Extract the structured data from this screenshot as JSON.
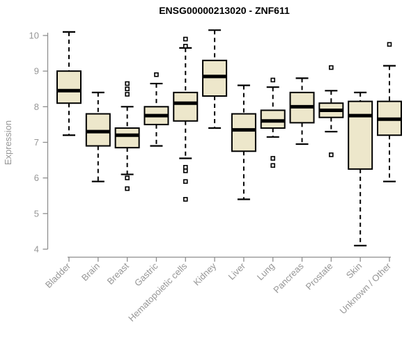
{
  "chart_data": {
    "type": "boxplot",
    "title": "ENSG00000213020 - ZNF611",
    "ylabel": "Expression",
    "xlabel": "",
    "ylim": [
      4,
      10
    ],
    "yticks": [
      4,
      5,
      6,
      7,
      8,
      9,
      10
    ],
    "grid": false,
    "legend": "none",
    "box_fill_color": "#ede7cb",
    "box_line_color": "#000000",
    "axis_color": "#8f8f8f",
    "label_color": "#969696",
    "title_color": "#000000",
    "categories": [
      "Bladder",
      "Brain",
      "Breast",
      "Gastric",
      "Hematopoietic cells",
      "Kidney",
      "Liver",
      "Lung",
      "Pancreas",
      "Prostate",
      "Skin",
      "Unknown / Other"
    ],
    "series": [
      {
        "category": "Bladder",
        "whisker_low": 7.2,
        "q1": 8.1,
        "median": 8.45,
        "q3": 9.0,
        "whisker_high": 10.1,
        "outliers": []
      },
      {
        "category": "Brain",
        "whisker_low": 5.9,
        "q1": 6.9,
        "median": 7.3,
        "q3": 7.8,
        "whisker_high": 8.4,
        "outliers": []
      },
      {
        "category": "Breast",
        "whisker_low": 6.1,
        "q1": 6.85,
        "median": 7.2,
        "q3": 7.4,
        "whisker_high": 8.0,
        "outliers": [
          8.65,
          8.5,
          8.35,
          6.0,
          5.7
        ]
      },
      {
        "category": "Gastric",
        "whisker_low": 6.9,
        "q1": 7.5,
        "median": 7.75,
        "q3": 8.0,
        "whisker_high": 8.65,
        "outliers": [
          8.9
        ]
      },
      {
        "category": "Hematopoietic cells",
        "whisker_low": 6.55,
        "q1": 7.6,
        "median": 8.1,
        "q3": 8.4,
        "whisker_high": 9.65,
        "outliers": [
          9.9,
          9.7,
          6.3,
          6.2,
          5.9,
          5.4
        ]
      },
      {
        "category": "Kidney",
        "whisker_low": 7.4,
        "q1": 8.3,
        "median": 8.85,
        "q3": 9.3,
        "whisker_high": 10.15,
        "outliers": []
      },
      {
        "category": "Liver",
        "whisker_low": 5.4,
        "q1": 6.75,
        "median": 7.35,
        "q3": 7.8,
        "whisker_high": 8.6,
        "outliers": []
      },
      {
        "category": "Lung",
        "whisker_low": 7.15,
        "q1": 7.4,
        "median": 7.6,
        "q3": 7.9,
        "whisker_high": 8.55,
        "outliers": [
          8.75,
          6.55,
          6.35
        ]
      },
      {
        "category": "Pancreas",
        "whisker_low": 6.95,
        "q1": 7.55,
        "median": 8.0,
        "q3": 8.4,
        "whisker_high": 8.8,
        "outliers": []
      },
      {
        "category": "Prostate",
        "whisker_low": 7.3,
        "q1": 7.7,
        "median": 7.9,
        "q3": 8.1,
        "whisker_high": 8.45,
        "outliers": [
          9.1,
          6.65
        ]
      },
      {
        "category": "Skin",
        "whisker_low": 4.1,
        "q1": 6.25,
        "median": 7.75,
        "q3": 8.15,
        "whisker_high": 8.4,
        "outliers": []
      },
      {
        "category": "Unknown / Other",
        "whisker_low": 5.9,
        "q1": 7.2,
        "median": 7.65,
        "q3": 8.15,
        "whisker_high": 9.15,
        "outliers": [
          9.75
        ]
      }
    ]
  }
}
